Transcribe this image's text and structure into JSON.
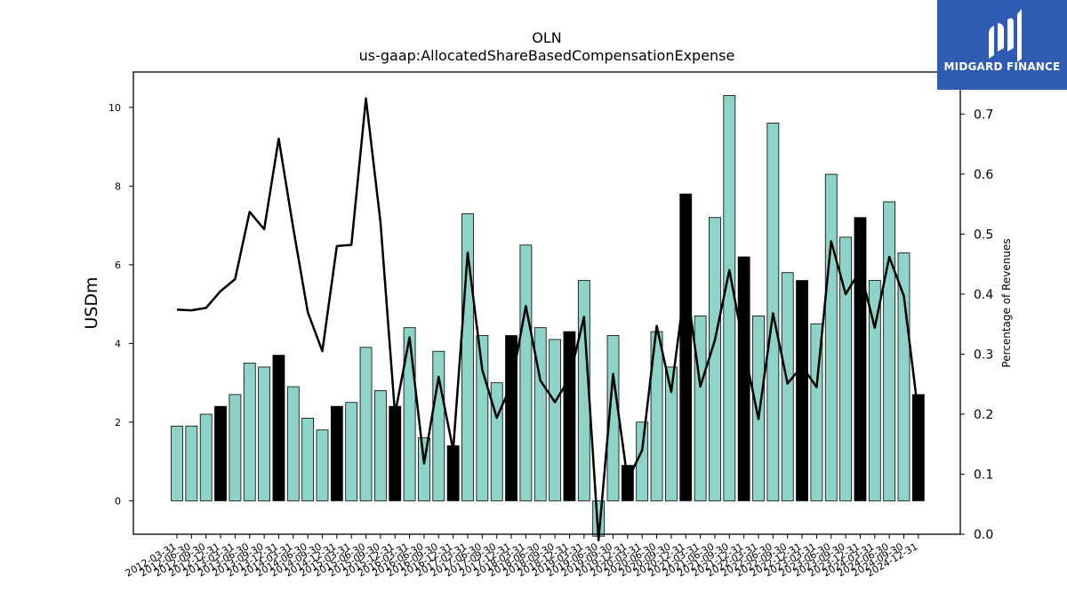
{
  "chart_data": {
    "type": "bar",
    "title": "OLN",
    "subtitle": "us-gaap:AllocatedShareBasedCompensationExpense",
    "ylabel": "USDm",
    "y2label": "Percentage of Revenues",
    "ylim": [
      -0.85,
      10.9
    ],
    "y2lim": [
      0.0,
      0.77
    ],
    "yticks": [
      0,
      2,
      4,
      6,
      8,
      10
    ],
    "y2ticks": [
      0.0,
      0.1,
      0.2,
      0.3,
      0.4,
      0.5,
      0.6,
      0.7
    ],
    "categories": [
      "2012-03-31",
      "2012-06-30",
      "2012-09-30",
      "2012-12-31",
      "2013-03-31",
      "2013-06-30",
      "2013-09-30",
      "2013-12-31",
      "2014-03-31",
      "2014-06-30",
      "2014-09-30",
      "2014-12-31",
      "2015-03-31",
      "2015-06-30",
      "2015-09-30",
      "2015-12-31",
      "2016-03-31",
      "2016-06-30",
      "2016-09-30",
      "2016-12-31",
      "2017-03-31",
      "2017-06-30",
      "2017-09-30",
      "2017-12-31",
      "2018-03-31",
      "2018-06-30",
      "2018-09-30",
      "2018-12-31",
      "2019-03-31",
      "2019-06-30",
      "2019-09-30",
      "2019-12-31",
      "2020-03-31",
      "2020-06-30",
      "2020-09-30",
      "2020-12-31",
      "2021-03-31",
      "2021-06-30",
      "2021-09-30",
      "2021-12-31",
      "2022-03-31",
      "2022-06-30",
      "2022-09-30",
      "2022-12-31",
      "2023-03-31",
      "2023-06-30",
      "2023-09-30",
      "2023-12-31",
      "2024-03-31",
      "2024-06-30",
      "2024-09-30",
      "2024-12-31"
    ],
    "series": [
      {
        "kind": "bar",
        "values": [
          1.9,
          1.9,
          2.2,
          2.4,
          2.7,
          3.5,
          3.4,
          3.7,
          2.9,
          2.1,
          1.8,
          2.4,
          2.5,
          3.9,
          2.8,
          2.4,
          4.4,
          1.6,
          3.8,
          1.4,
          7.3,
          4.2,
          3.0,
          4.2,
          6.5,
          4.4,
          4.1,
          4.3,
          5.6,
          -0.9,
          4.2,
          0.9,
          2.0,
          4.3,
          3.4,
          7.8,
          4.7,
          7.2,
          10.3,
          6.2,
          4.7,
          9.6,
          5.8,
          5.6,
          4.5,
          8.3,
          6.7,
          7.2,
          5.6,
          7.6,
          6.3,
          2.7
        ],
        "highlight": [
          false,
          false,
          false,
          true,
          false,
          false,
          false,
          true,
          false,
          false,
          false,
          true,
          false,
          false,
          false,
          true,
          false,
          false,
          false,
          true,
          false,
          false,
          false,
          true,
          false,
          false,
          false,
          true,
          false,
          false,
          false,
          true,
          false,
          false,
          false,
          true,
          false,
          false,
          false,
          true,
          false,
          false,
          false,
          true,
          false,
          false,
          false,
          true,
          false,
          false,
          false,
          true
        ]
      },
      {
        "kind": "line",
        "axis": "right",
        "values": [
          0.374,
          0.373,
          0.377,
          0.405,
          0.425,
          0.537,
          0.508,
          0.659,
          0.51,
          0.37,
          0.305,
          0.48,
          0.482,
          0.726,
          0.52,
          0.2,
          0.328,
          0.118,
          0.262,
          0.14,
          0.469,
          0.274,
          0.194,
          0.249,
          0.38,
          0.256,
          0.22,
          0.26,
          0.362,
          -0.01,
          0.267,
          0.09,
          0.14,
          0.347,
          0.237,
          0.424,
          0.246,
          0.323,
          0.44,
          0.31,
          0.192,
          0.368,
          0.251,
          0.28,
          0.245,
          0.488,
          0.4,
          0.44,
          0.344,
          0.462,
          0.397,
          0.2
        ]
      }
    ],
    "colors": {
      "bar": "#8dd3c7",
      "highlight": "#000000",
      "line": "#000000",
      "logo_bg": "#2f5bb0"
    }
  },
  "logo": {
    "text": "MIDGARD FINANCE",
    "icon": "midgard-logo-icon"
  }
}
